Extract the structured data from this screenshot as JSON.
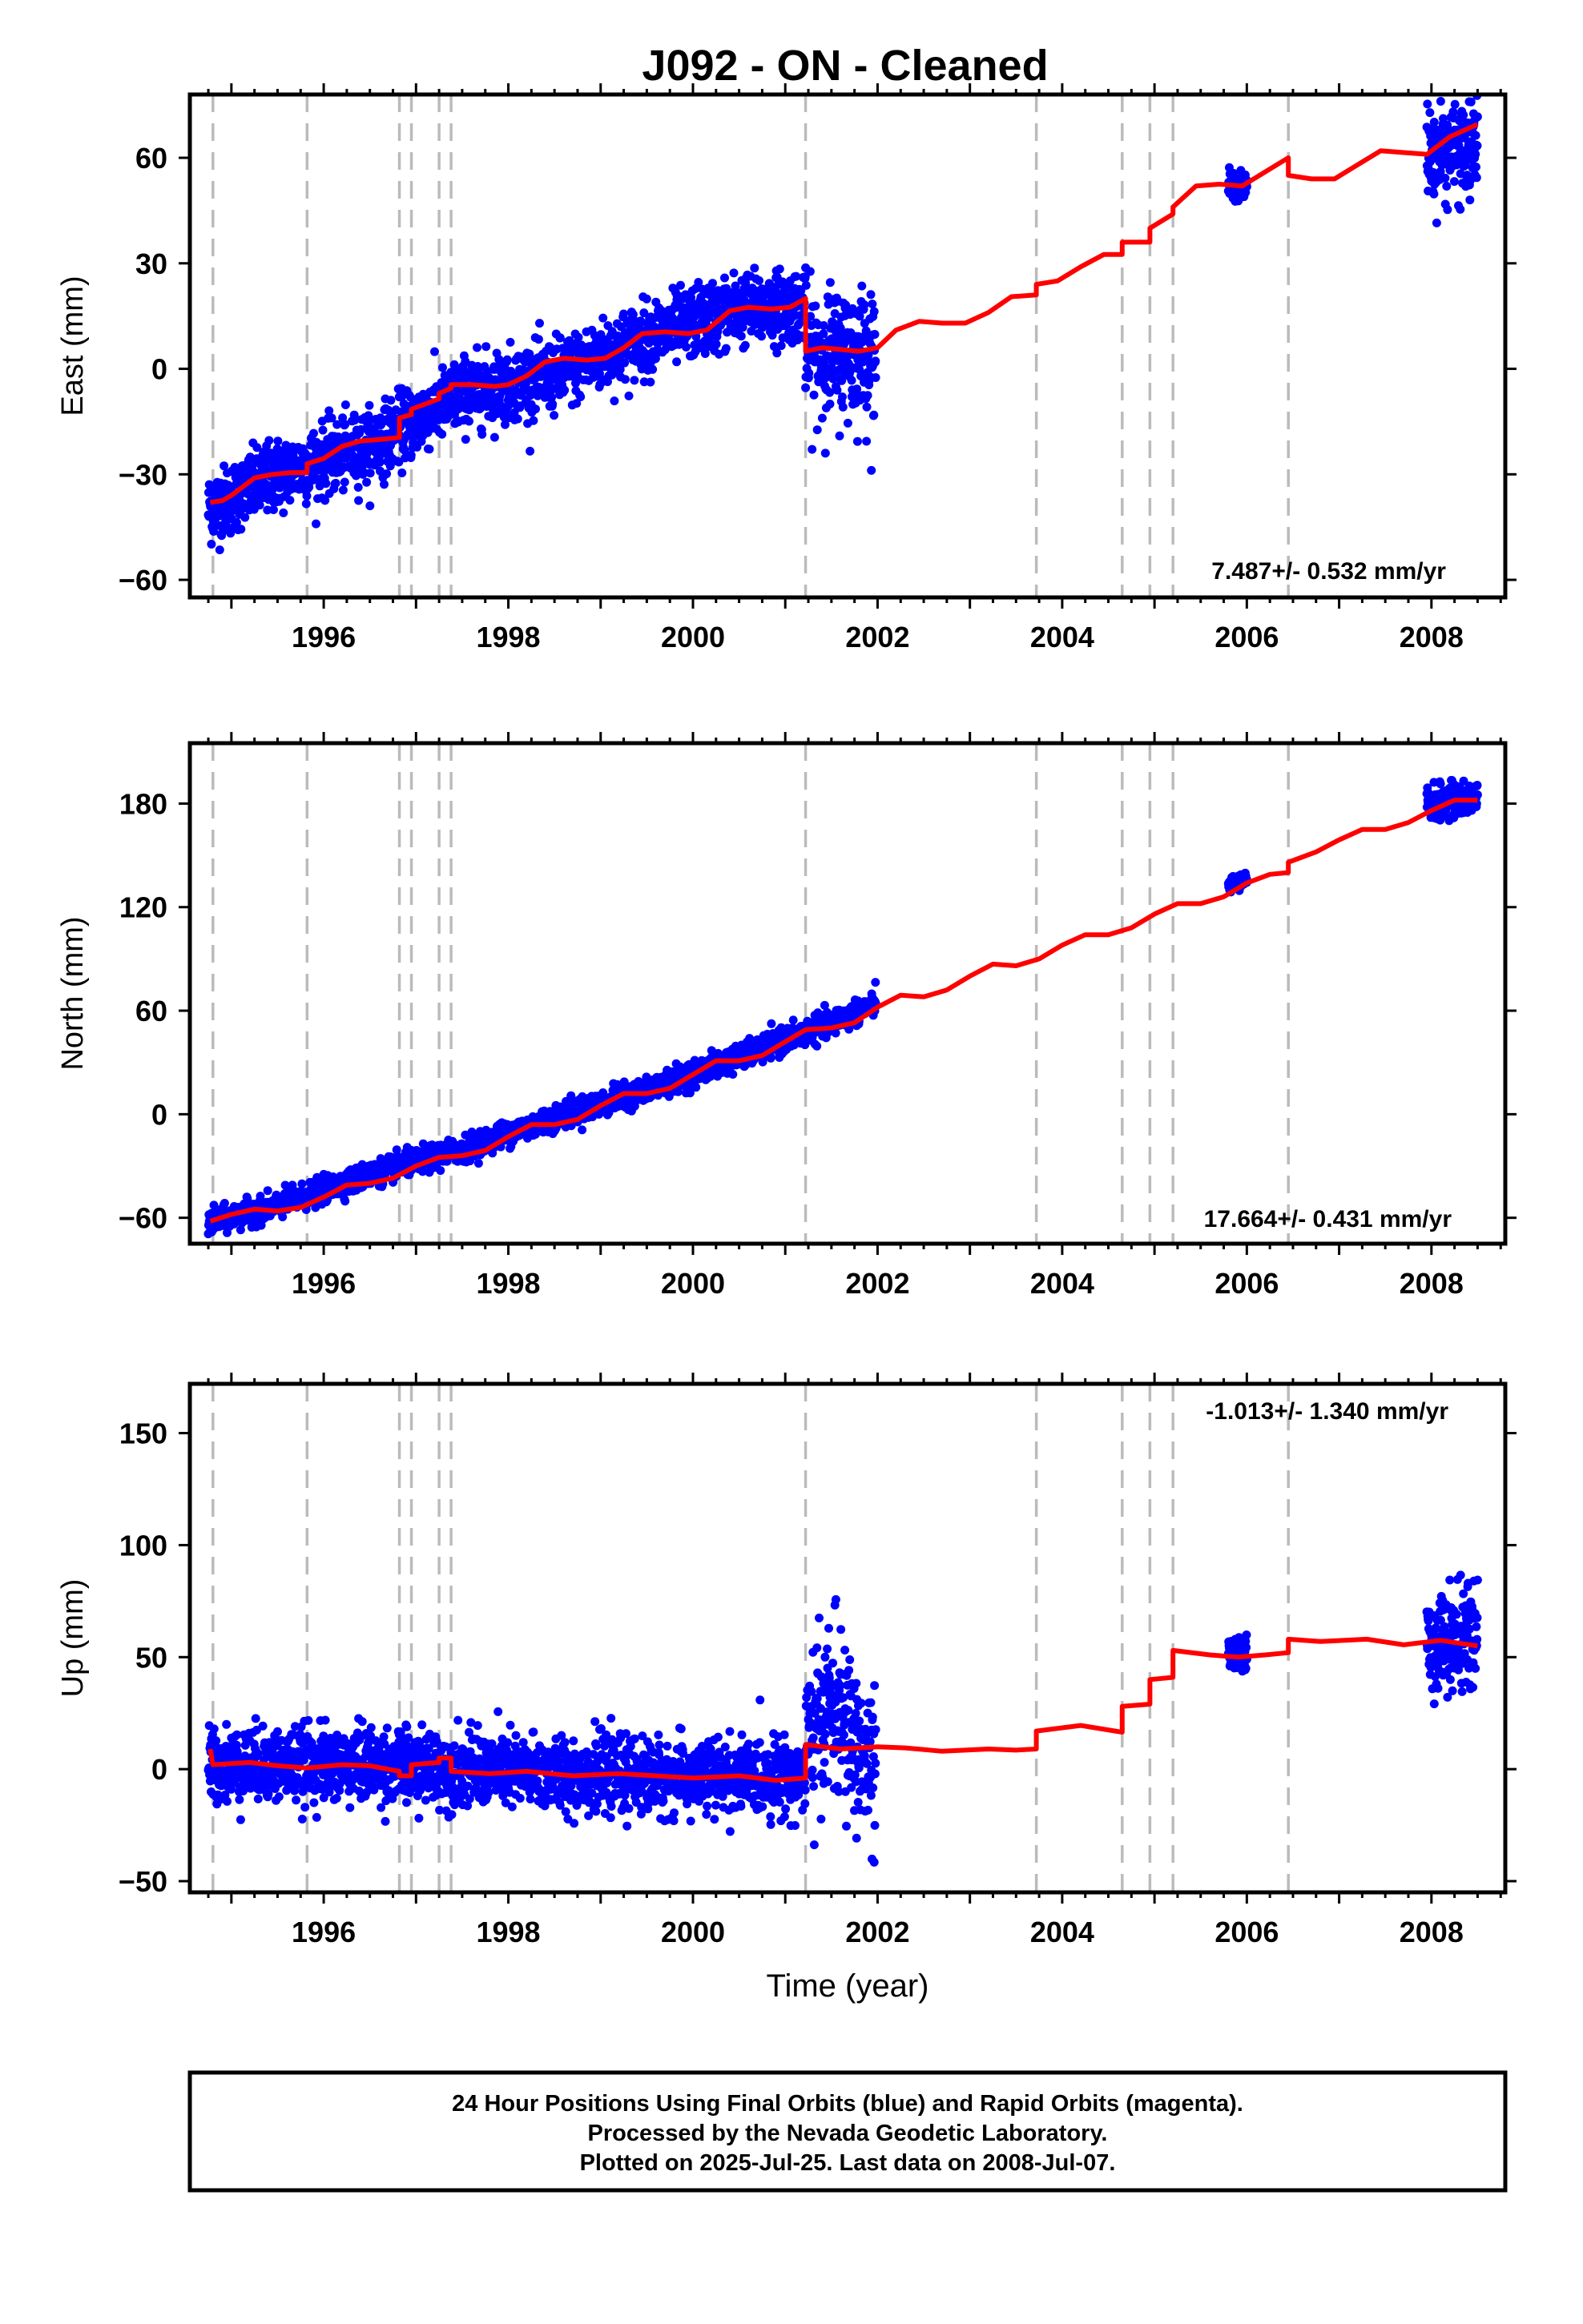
{
  "title": "J092  - ON - Cleaned",
  "colors": {
    "final_orbits": "#0000ff",
    "model": "#ff0000",
    "offsets": "#bbbbbb",
    "frame": "#000000"
  },
  "footer": {
    "line1": "24 Hour Positions Using Final Orbits (blue) and Rapid Orbits (magenta).",
    "line2": "Processed by the Nevada Geodetic Laboratory.",
    "line3": "Plotted on 2025-Jul-25. Last data on 2008-Jul-07."
  },
  "chart_data": [
    {
      "type": "scatter",
      "component": "East",
      "ylabel": "East (mm)",
      "xlabel": "",
      "rate": "7.487+/- 0.532 mm/yr",
      "xlim": [
        1994.55,
        2008.8
      ],
      "ylim": [
        -65,
        78
      ],
      "yticks": [
        -60,
        -30,
        0,
        30,
        60
      ],
      "xticks": [
        1996,
        1998,
        2000,
        2002,
        2004,
        2006,
        2008
      ],
      "offset_epochs": [
        1994.8,
        1995.82,
        1996.82,
        1996.95,
        1997.25,
        1997.38,
        2001.22,
        2003.72,
        2004.65,
        2004.95,
        2005.2,
        2006.45
      ],
      "data_segments": [
        {
          "start": 1994.75,
          "end": 2001.22,
          "trend": [
            [
              1994.75,
              -40
            ],
            [
              1995.5,
              -30
            ],
            [
              1996.5,
              -22
            ],
            [
              1997.5,
              -7
            ],
            [
              1998.5,
              -2
            ],
            [
              1999.5,
              9
            ],
            [
              2000.5,
              17
            ],
            [
              2001.2,
              18
            ]
          ],
          "scatter": 5
        },
        {
          "start": 2001.22,
          "end": 2001.98,
          "trend": [
            [
              2001.22,
              4
            ],
            [
              2001.98,
              5
            ]
          ],
          "scatter": 9
        },
        {
          "start": 2005.8,
          "end": 2006.0,
          "trend": [
            [
              2005.8,
              52
            ],
            [
              2006.0,
              52
            ]
          ],
          "scatter": 2
        },
        {
          "start": 2007.95,
          "end": 2008.5,
          "trend": [
            [
              2007.95,
              62
            ],
            [
              2008.5,
              62
            ]
          ],
          "scatter": 7
        }
      ],
      "model_line": [
        [
          1994.77,
          -38
        ],
        [
          1994.9,
          -37.5
        ],
        [
          1995.0,
          -36
        ],
        [
          1995.1,
          -34
        ],
        [
          1995.25,
          -31
        ],
        [
          1995.45,
          -30
        ],
        [
          1995.65,
          -29.5
        ],
        [
          1995.82,
          -29.5
        ],
        [
          1995.82,
          -27
        ],
        [
          1996.0,
          -25.5
        ],
        [
          1996.2,
          -22
        ],
        [
          1996.4,
          -20.5
        ],
        [
          1996.65,
          -20
        ],
        [
          1996.82,
          -19.5
        ],
        [
          1996.82,
          -14
        ],
        [
          1996.95,
          -13
        ],
        [
          1996.95,
          -11.5
        ],
        [
          1997.1,
          -10
        ],
        [
          1997.25,
          -8.5
        ],
        [
          1997.25,
          -7
        ],
        [
          1997.38,
          -5.5
        ],
        [
          1997.38,
          -4.5
        ],
        [
          1997.6,
          -4.5
        ],
        [
          1997.85,
          -5
        ],
        [
          1998.0,
          -4.5
        ],
        [
          1998.2,
          -2
        ],
        [
          1998.4,
          2
        ],
        [
          1998.6,
          3
        ],
        [
          1998.85,
          2.5
        ],
        [
          1999.05,
          3
        ],
        [
          1999.25,
          6
        ],
        [
          1999.45,
          10
        ],
        [
          1999.7,
          10.5
        ],
        [
          1999.95,
          10
        ],
        [
          2000.15,
          11
        ],
        [
          2000.4,
          16.5
        ],
        [
          2000.6,
          17.5
        ],
        [
          2000.85,
          17
        ],
        [
          2001.05,
          17.5
        ],
        [
          2001.22,
          20
        ],
        [
          2001.22,
          5
        ],
        [
          2001.4,
          6
        ],
        [
          2001.6,
          5.5
        ],
        [
          2001.8,
          5
        ],
        [
          2002.0,
          6
        ],
        [
          2002.2,
          11
        ],
        [
          2002.45,
          13.5
        ],
        [
          2002.7,
          13
        ],
        [
          2002.95,
          13
        ],
        [
          2003.2,
          16
        ],
        [
          2003.45,
          20.5
        ],
        [
          2003.72,
          21
        ],
        [
          2003.72,
          24
        ],
        [
          2003.95,
          25
        ],
        [
          2004.2,
          29
        ],
        [
          2004.45,
          32.5
        ],
        [
          2004.65,
          32.5
        ],
        [
          2004.65,
          36
        ],
        [
          2004.95,
          36
        ],
        [
          2004.95,
          40
        ],
        [
          2005.2,
          44
        ],
        [
          2005.2,
          46
        ],
        [
          2005.45,
          52
        ],
        [
          2005.7,
          52.5
        ],
        [
          2005.95,
          52
        ],
        [
          2006.2,
          56
        ],
        [
          2006.45,
          60
        ],
        [
          2006.45,
          55
        ],
        [
          2006.7,
          54
        ],
        [
          2006.95,
          54
        ],
        [
          2007.2,
          58
        ],
        [
          2007.45,
          62
        ],
        [
          2007.7,
          61.5
        ],
        [
          2007.95,
          61
        ],
        [
          2008.2,
          66
        ],
        [
          2008.5,
          69.5
        ]
      ]
    },
    {
      "type": "scatter",
      "component": "North",
      "ylabel": "North (mm)",
      "xlabel": "",
      "rate": "17.664+/- 0.431 mm/yr",
      "xlim": [
        1994.55,
        2008.8
      ],
      "ylim": [
        -75,
        215
      ],
      "yticks": [
        -60,
        0,
        60,
        120,
        180
      ],
      "xticks": [
        1996,
        1998,
        2000,
        2002,
        2004,
        2006,
        2008
      ],
      "offset_epochs": [
        1994.8,
        1995.82,
        1996.82,
        1996.95,
        1997.25,
        1997.38,
        2001.22,
        2003.72,
        2004.65,
        2004.95,
        2005.2,
        2006.45
      ],
      "data_segments": [
        {
          "start": 1994.75,
          "end": 2001.98,
          "trend": [
            [
              1994.75,
              -63
            ],
            [
              1995.5,
              -53
            ],
            [
              1996.5,
              -35
            ],
            [
              1997.5,
              -20
            ],
            [
              1998.5,
              -2
            ],
            [
              1999.5,
              14
            ],
            [
              2000.5,
              33
            ],
            [
              2001.5,
              53
            ],
            [
              2001.98,
              64
            ]
          ],
          "scatter": 3.5
        },
        {
          "start": 2005.8,
          "end": 2006.0,
          "trend": [
            [
              2005.8,
              133
            ],
            [
              2006.0,
              135
            ]
          ],
          "scatter": 2.5
        },
        {
          "start": 2007.95,
          "end": 2008.5,
          "trend": [
            [
              2007.95,
              180
            ],
            [
              2008.5,
              183
            ]
          ],
          "scatter": 5
        }
      ],
      "model_line": [
        [
          1994.77,
          -62
        ],
        [
          1995.0,
          -58
        ],
        [
          1995.25,
          -55
        ],
        [
          1995.5,
          -56
        ],
        [
          1995.75,
          -54
        ],
        [
          1996.0,
          -48
        ],
        [
          1996.25,
          -41
        ],
        [
          1996.5,
          -40
        ],
        [
          1996.75,
          -37
        ],
        [
          1997.0,
          -30
        ],
        [
          1997.25,
          -25
        ],
        [
          1997.5,
          -24
        ],
        [
          1997.75,
          -21
        ],
        [
          1998.0,
          -13
        ],
        [
          1998.25,
          -6
        ],
        [
          1998.5,
          -6
        ],
        [
          1998.75,
          -3
        ],
        [
          1999.0,
          5
        ],
        [
          1999.25,
          12
        ],
        [
          1999.5,
          12
        ],
        [
          1999.75,
          15
        ],
        [
          2000.0,
          23
        ],
        [
          2000.25,
          31
        ],
        [
          2000.5,
          31
        ],
        [
          2000.75,
          34
        ],
        [
          2001.0,
          42
        ],
        [
          2001.22,
          49
        ],
        [
          2001.5,
          50
        ],
        [
          2001.75,
          53
        ],
        [
          2002.0,
          62
        ],
        [
          2002.25,
          69
        ],
        [
          2002.5,
          68
        ],
        [
          2002.75,
          72
        ],
        [
          2003.0,
          80
        ],
        [
          2003.25,
          87
        ],
        [
          2003.5,
          86
        ],
        [
          2003.75,
          90
        ],
        [
          2004.0,
          98
        ],
        [
          2004.25,
          104
        ],
        [
          2004.5,
          104
        ],
        [
          2004.75,
          108
        ],
        [
          2005.0,
          116
        ],
        [
          2005.25,
          122
        ],
        [
          2005.5,
          122
        ],
        [
          2005.75,
          126
        ],
        [
          2006.0,
          134
        ],
        [
          2006.25,
          139
        ],
        [
          2006.45,
          140
        ],
        [
          2006.45,
          146
        ],
        [
          2006.75,
          152
        ],
        [
          2007.0,
          159
        ],
        [
          2007.25,
          165
        ],
        [
          2007.5,
          165
        ],
        [
          2007.75,
          169
        ],
        [
          2008.0,
          176
        ],
        [
          2008.25,
          182
        ],
        [
          2008.5,
          182
        ]
      ]
    },
    {
      "type": "scatter",
      "component": "Up",
      "ylabel": "Up (mm)",
      "xlabel": "Time (year)",
      "rate": "-1.013+/- 1.340 mm/yr",
      "xlim": [
        1994.55,
        2008.8
      ],
      "ylim": [
        -55,
        172
      ],
      "yticks": [
        -50,
        0,
        50,
        100,
        150
      ],
      "xticks": [
        1996,
        1998,
        2000,
        2002,
        2004,
        2006,
        2008
      ],
      "offset_epochs": [
        1994.8,
        1995.82,
        1996.82,
        1996.95,
        1997.25,
        1997.38,
        2001.22,
        2003.72,
        2004.65,
        2004.95,
        2005.2,
        2006.45
      ],
      "data_segments": [
        {
          "start": 1994.75,
          "end": 2001.22,
          "trend": [
            [
              1994.75,
              2
            ],
            [
              1996.5,
              2
            ],
            [
              1998.5,
              -2
            ],
            [
              2000.0,
              -4
            ],
            [
              2001.2,
              -3
            ]
          ],
          "scatter": 8
        },
        {
          "start": 2001.22,
          "end": 2001.98,
          "trend": [
            [
              2001.22,
              10
            ],
            [
              2001.5,
              30
            ],
            [
              2001.7,
              15
            ],
            [
              2001.98,
              -5
            ]
          ],
          "scatter": 18
        },
        {
          "start": 2005.8,
          "end": 2006.0,
          "trend": [
            [
              2005.8,
              50
            ],
            [
              2006.0,
              52
            ]
          ],
          "scatter": 4
        },
        {
          "start": 2007.95,
          "end": 2008.5,
          "trend": [
            [
              2007.95,
              55
            ],
            [
              2008.5,
              60
            ]
          ],
          "scatter": 11
        }
      ],
      "model_line": [
        [
          1994.77,
          9
        ],
        [
          1994.8,
          2
        ],
        [
          1995.2,
          3
        ],
        [
          1995.5,
          1.5
        ],
        [
          1995.82,
          0.5
        ],
        [
          1996.2,
          2
        ],
        [
          1996.5,
          1.5
        ],
        [
          1996.82,
          -1
        ],
        [
          1996.82,
          -3
        ],
        [
          1996.95,
          -3
        ],
        [
          1996.95,
          2
        ],
        [
          1997.25,
          3
        ],
        [
          1997.25,
          5
        ],
        [
          1997.38,
          5
        ],
        [
          1997.38,
          -1
        ],
        [
          1997.8,
          -2
        ],
        [
          1998.2,
          -1
        ],
        [
          1998.7,
          -3
        ],
        [
          1999.2,
          -2
        ],
        [
          1999.6,
          -3
        ],
        [
          2000.0,
          -4
        ],
        [
          2000.5,
          -3
        ],
        [
          2000.9,
          -5
        ],
        [
          2001.22,
          -4
        ],
        [
          2001.22,
          11
        ],
        [
          2001.6,
          9
        ],
        [
          2002.0,
          10
        ],
        [
          2002.3,
          9.5
        ],
        [
          2002.7,
          8
        ],
        [
          2003.2,
          9
        ],
        [
          2003.5,
          8.5
        ],
        [
          2003.72,
          9
        ],
        [
          2003.72,
          17
        ],
        [
          2004.2,
          19.5
        ],
        [
          2004.65,
          16.5
        ],
        [
          2004.65,
          28
        ],
        [
          2004.95,
          29
        ],
        [
          2004.95,
          40
        ],
        [
          2005.2,
          41
        ],
        [
          2005.2,
          53
        ],
        [
          2005.6,
          51
        ],
        [
          2005.9,
          50
        ],
        [
          2006.2,
          51
        ],
        [
          2006.45,
          52
        ],
        [
          2006.45,
          58
        ],
        [
          2006.8,
          57
        ],
        [
          2007.3,
          58
        ],
        [
          2007.7,
          55.5
        ],
        [
          2008.1,
          57.5
        ],
        [
          2008.5,
          55
        ]
      ]
    }
  ]
}
